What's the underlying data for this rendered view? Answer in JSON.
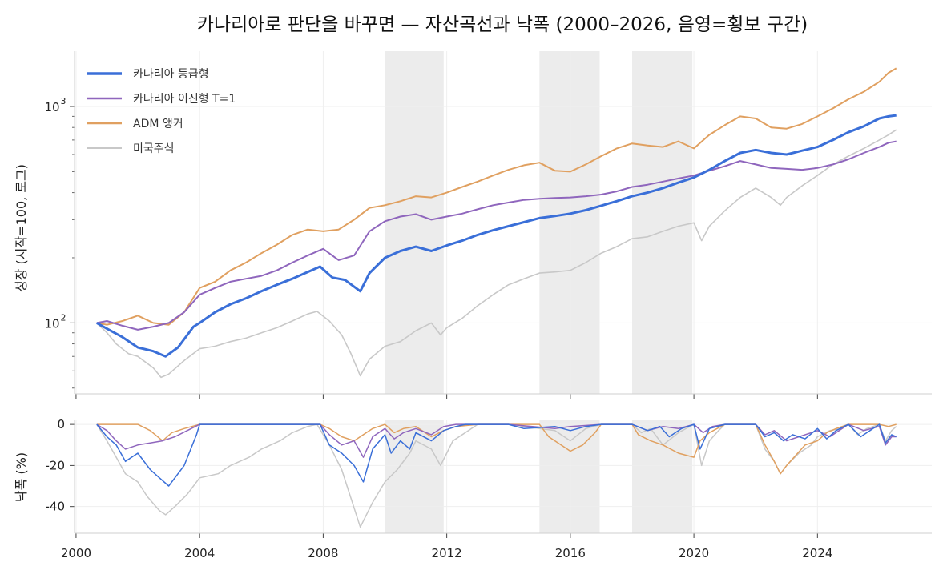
{
  "chart_data": [
    {
      "type": "line",
      "panel": "growth",
      "title": "카나리아로 판단을 바꾸면 — 자산곡선과 낙폭 (2000–2026, 음영=횡보 구간)",
      "ylabel": "성장 (시작=100, 로그)",
      "yscale": "log",
      "ylim": [
        47,
        1800
      ],
      "xlim": [
        1999.95,
        2027.7
      ],
      "grid": true,
      "legend_position": "top-left",
      "y_ticks": [
        {
          "value": 100,
          "base": "10",
          "exp": "2"
        },
        {
          "value": 1000,
          "base": "10",
          "exp": "3"
        }
      ],
      "shaded_periods": [
        [
          2010.0,
          2011.9
        ],
        [
          2015.0,
          2016.95
        ],
        [
          2018.0,
          2019.95
        ]
      ],
      "series": [
        {
          "name": "카나리아 등급형",
          "color": "#3a6fd8",
          "x": [
            2000.67,
            2001.0,
            2001.5,
            2002.0,
            2002.5,
            2002.9,
            2003.3,
            2003.8,
            2004.0,
            2004.5,
            2005.0,
            2005.5,
            2006.0,
            2006.5,
            2007.0,
            2007.5,
            2007.9,
            2008.3,
            2008.7,
            2009.2,
            2009.5,
            2010.0,
            2010.5,
            2011.0,
            2011.5,
            2012.0,
            2012.5,
            2013.0,
            2013.5,
            2014.0,
            2014.5,
            2015.0,
            2015.5,
            2016.0,
            2016.5,
            2017.0,
            2017.5,
            2018.0,
            2018.5,
            2019.0,
            2019.5,
            2020.0,
            2020.5,
            2021.0,
            2021.5,
            2022.0,
            2022.5,
            2023.0,
            2023.5,
            2024.0,
            2024.5,
            2025.0,
            2025.5,
            2026.0,
            2026.3,
            2026.55
          ],
          "values": [
            100,
            94,
            86,
            77,
            74,
            70,
            77,
            96,
            100,
            112,
            122,
            130,
            140,
            150,
            160,
            172,
            182,
            162,
            158,
            140,
            170,
            200,
            215,
            225,
            215,
            228,
            240,
            255,
            268,
            280,
            292,
            305,
            312,
            320,
            332,
            348,
            365,
            385,
            400,
            420,
            445,
            470,
            510,
            560,
            610,
            630,
            610,
            600,
            625,
            650,
            700,
            760,
            810,
            880,
            900,
            910
          ]
        },
        {
          "name": "카나리아 이진형 T=1",
          "color": "#8f66bd",
          "x": [
            2000.67,
            2001.0,
            2001.5,
            2002.0,
            2002.5,
            2003.0,
            2003.5,
            2004.0,
            2004.5,
            2005.0,
            2005.5,
            2006.0,
            2006.5,
            2007.0,
            2007.5,
            2008.0,
            2008.5,
            2009.0,
            2009.5,
            2010.0,
            2010.5,
            2011.0,
            2011.5,
            2012.0,
            2012.5,
            2013.0,
            2013.5,
            2014.0,
            2014.5,
            2015.0,
            2015.5,
            2016.0,
            2016.5,
            2017.0,
            2017.5,
            2018.0,
            2018.5,
            2019.0,
            2019.5,
            2020.0,
            2020.5,
            2021.0,
            2021.5,
            2022.0,
            2022.5,
            2023.0,
            2023.5,
            2024.0,
            2024.5,
            2025.0,
            2025.5,
            2026.0,
            2026.3,
            2026.55
          ],
          "values": [
            100,
            102,
            97,
            93,
            96,
            100,
            112,
            135,
            145,
            155,
            160,
            165,
            175,
            190,
            205,
            220,
            195,
            205,
            265,
            295,
            310,
            318,
            300,
            310,
            320,
            335,
            350,
            360,
            370,
            375,
            378,
            380,
            385,
            392,
            405,
            425,
            435,
            450,
            465,
            480,
            505,
            530,
            560,
            540,
            520,
            515,
            510,
            520,
            540,
            570,
            610,
            650,
            680,
            690
          ]
        },
        {
          "name": "ADM 앵커",
          "color": "#e0a060",
          "x": [
            2000.67,
            2001.0,
            2001.5,
            2002.0,
            2002.5,
            2003.0,
            2003.5,
            2004.0,
            2004.5,
            2005.0,
            2005.5,
            2006.0,
            2006.5,
            2007.0,
            2007.5,
            2008.0,
            2008.5,
            2009.0,
            2009.5,
            2010.0,
            2010.5,
            2011.0,
            2011.5,
            2012.0,
            2012.5,
            2013.0,
            2013.5,
            2014.0,
            2014.5,
            2015.0,
            2015.5,
            2016.0,
            2016.5,
            2017.0,
            2017.5,
            2018.0,
            2018.5,
            2019.0,
            2019.5,
            2020.0,
            2020.5,
            2021.0,
            2021.5,
            2022.0,
            2022.5,
            2023.0,
            2023.5,
            2024.0,
            2024.5,
            2025.0,
            2025.5,
            2026.0,
            2026.3,
            2026.55
          ],
          "values": [
            100,
            98,
            102,
            108,
            100,
            98,
            112,
            145,
            155,
            175,
            190,
            210,
            230,
            255,
            270,
            265,
            270,
            300,
            340,
            350,
            365,
            385,
            380,
            400,
            425,
            450,
            480,
            510,
            535,
            550,
            505,
            500,
            540,
            590,
            640,
            675,
            660,
            650,
            690,
            640,
            740,
            820,
            900,
            880,
            800,
            790,
            830,
            900,
            980,
            1080,
            1170,
            1300,
            1430,
            1500
          ]
        },
        {
          "name": "미국주식",
          "color": "#c8c8c8",
          "x": [
            2000.67,
            2001.0,
            2001.3,
            2001.7,
            2002.0,
            2002.5,
            2002.75,
            2003.0,
            2003.5,
            2004.0,
            2004.5,
            2005.0,
            2005.5,
            2006.0,
            2006.5,
            2007.0,
            2007.5,
            2007.8,
            2008.2,
            2008.6,
            2008.9,
            2009.2,
            2009.5,
            2010.0,
            2010.5,
            2011.0,
            2011.5,
            2011.8,
            2012.0,
            2012.5,
            2013.0,
            2013.5,
            2014.0,
            2014.5,
            2015.0,
            2015.5,
            2016.0,
            2016.5,
            2017.0,
            2017.5,
            2018.0,
            2018.5,
            2019.0,
            2019.5,
            2020.0,
            2020.25,
            2020.5,
            2021.0,
            2021.5,
            2022.0,
            2022.5,
            2022.8,
            2023.0,
            2023.5,
            2024.0,
            2024.5,
            2025.0,
            2025.5,
            2026.0,
            2026.3,
            2026.55
          ],
          "values": [
            100,
            90,
            80,
            72,
            70,
            62,
            56,
            58,
            67,
            76,
            78,
            82,
            85,
            90,
            95,
            102,
            110,
            113,
            102,
            88,
            72,
            57,
            68,
            78,
            82,
            92,
            100,
            88,
            95,
            105,
            120,
            135,
            150,
            160,
            170,
            172,
            175,
            190,
            210,
            225,
            245,
            250,
            265,
            280,
            290,
            240,
            280,
            330,
            380,
            420,
            380,
            350,
            380,
            430,
            480,
            540,
            590,
            640,
            700,
            740,
            780
          ]
        }
      ]
    },
    {
      "type": "line",
      "panel": "drawdown",
      "ylabel": "낙폭 (%)",
      "ylim": [
        -53,
        2
      ],
      "y_ticks": [
        0,
        -20,
        -40
      ],
      "grid": true,
      "x_ticks": [
        2000,
        2004,
        2008,
        2012,
        2016,
        2020,
        2024
      ],
      "shaded_periods": [
        [
          2010.0,
          2011.9
        ],
        [
          2015.0,
          2016.95
        ],
        [
          2018.0,
          2019.95
        ]
      ],
      "series": [
        {
          "name": "카나리아 등급형",
          "color": "#3a6fd8",
          "x": [
            2000.67,
            2001.0,
            2001.3,
            2001.6,
            2002.0,
            2002.4,
            2002.7,
            2003.0,
            2003.5,
            2003.9,
            2004.0,
            2007.9,
            2008.2,
            2008.6,
            2009.0,
            2009.3,
            2009.6,
            2010.0,
            2010.2,
            2010.5,
            2010.8,
            2011.0,
            2011.5,
            2011.9,
            2012.3,
            2012.6,
            2013.0,
            2014.0,
            2014.5,
            2015.5,
            2016.0,
            2016.5,
            2017.0,
            2018.0,
            2018.5,
            2018.9,
            2019.2,
            2019.6,
            2020.0,
            2020.2,
            2020.5,
            2021.0,
            2021.5,
            2022.0,
            2022.3,
            2022.6,
            2022.9,
            2023.2,
            2023.6,
            2024.0,
            2024.3,
            2024.6,
            2025.0,
            2025.4,
            2025.8,
            2026.0,
            2026.2,
            2026.4,
            2026.55
          ],
          "values": [
            0,
            -6,
            -10,
            -18,
            -14,
            -22,
            -26,
            -30,
            -20,
            -5,
            0,
            0,
            -10,
            -14,
            -20,
            -28,
            -12,
            -5,
            -14,
            -8,
            -12,
            -4,
            -8,
            -3,
            -1,
            0,
            0,
            0,
            -2,
            -1,
            -3,
            -1,
            0,
            0,
            -3,
            -1,
            -6,
            -2,
            0,
            -12,
            -2,
            0,
            0,
            0,
            -6,
            -4,
            -8,
            -5,
            -7,
            -2,
            -7,
            -3,
            0,
            -6,
            -2,
            0,
            -9,
            -5,
            -6
          ]
        },
        {
          "name": "카나리아 이진형 T=1",
          "color": "#8f66bd",
          "x": [
            2000.67,
            2001.0,
            2001.3,
            2001.6,
            2002.0,
            2002.4,
            2002.8,
            2003.2,
            2003.6,
            2004.0,
            2007.9,
            2008.2,
            2008.6,
            2009.0,
            2009.3,
            2009.6,
            2010.0,
            2010.3,
            2010.6,
            2011.0,
            2011.5,
            2011.9,
            2012.3,
            2013.0,
            2014.0,
            2015.5,
            2016.0,
            2017.0,
            2018.0,
            2018.5,
            2019.0,
            2019.5,
            2020.0,
            2020.3,
            2020.6,
            2021.0,
            2021.5,
            2022.0,
            2022.3,
            2022.6,
            2023.0,
            2023.4,
            2023.8,
            2024.0,
            2024.4,
            2024.8,
            2025.0,
            2025.5,
            2026.0,
            2026.2,
            2026.4,
            2026.55
          ],
          "values": [
            0,
            -3,
            -8,
            -12,
            -10,
            -9,
            -8,
            -6,
            -3,
            0,
            0,
            -5,
            -10,
            -8,
            -16,
            -6,
            -2,
            -7,
            -4,
            -2,
            -5,
            -1,
            0,
            0,
            0,
            -2,
            -1,
            0,
            0,
            -3,
            -1,
            -2,
            0,
            -4,
            -1,
            0,
            0,
            0,
            -5,
            -3,
            -8,
            -6,
            -4,
            -3,
            -6,
            -2,
            0,
            -3,
            -1,
            -10,
            -6,
            -6
          ]
        },
        {
          "name": "ADM 앵커",
          "color": "#e0a060",
          "x": [
            2000.67,
            2001.0,
            2001.5,
            2002.0,
            2002.4,
            2002.8,
            2003.1,
            2003.5,
            2004.0,
            2007.9,
            2008.2,
            2008.6,
            2009.0,
            2009.3,
            2009.6,
            2010.0,
            2010.3,
            2010.6,
            2011.0,
            2011.5,
            2011.9,
            2012.3,
            2013.0,
            2014.0,
            2015.0,
            2015.3,
            2015.7,
            2016.0,
            2016.4,
            2016.8,
            2017.0,
            2018.0,
            2018.2,
            2018.6,
            2019.0,
            2019.5,
            2020.0,
            2020.2,
            2020.5,
            2021.0,
            2021.5,
            2022.0,
            2022.3,
            2022.6,
            2022.8,
            2023.0,
            2023.3,
            2023.6,
            2024.0,
            2024.3,
            2024.6,
            2025.0,
            2025.5,
            2026.0,
            2026.3,
            2026.55
          ],
          "values": [
            0,
            0,
            0,
            0,
            -3,
            -8,
            -4,
            -2,
            0,
            0,
            -2,
            -6,
            -8,
            -5,
            -2,
            0,
            -4,
            -2,
            -1,
            -6,
            -3,
            -1,
            0,
            0,
            0,
            -6,
            -10,
            -13,
            -10,
            -4,
            0,
            0,
            -5,
            -8,
            -10,
            -14,
            -16,
            -8,
            -4,
            0,
            0,
            0,
            -10,
            -18,
            -24,
            -20,
            -15,
            -10,
            -8,
            -4,
            -2,
            0,
            0,
            0,
            -1,
            0
          ]
        },
        {
          "name": "미국주식",
          "color": "#c8c8c8",
          "x": [
            2000.67,
            2001.0,
            2001.3,
            2001.6,
            2002.0,
            2002.3,
            2002.7,
            2002.9,
            2003.2,
            2003.6,
            2004.0,
            2004.6,
            2005.0,
            2005.6,
            2006.0,
            2006.6,
            2007.0,
            2007.5,
            2007.8,
            2008.2,
            2008.6,
            2008.9,
            2009.2,
            2009.6,
            2010.0,
            2010.4,
            2010.8,
            2011.0,
            2011.5,
            2011.8,
            2012.2,
            2012.6,
            2013.0,
            2014.0,
            2015.5,
            2016.0,
            2016.5,
            2017.0,
            2018.0,
            2018.3,
            2018.6,
            2019.0,
            2019.5,
            2020.0,
            2020.25,
            2020.5,
            2020.8,
            2021.0,
            2021.5,
            2022.0,
            2022.3,
            2022.6,
            2022.8,
            2023.0,
            2023.4,
            2023.8,
            2024.0,
            2024.4,
            2024.8,
            2025.0,
            2025.3,
            2025.6,
            2026.0,
            2026.2,
            2026.4,
            2026.55
          ],
          "values": [
            0,
            -8,
            -16,
            -24,
            -28,
            -35,
            -42,
            -44,
            -40,
            -34,
            -26,
            -24,
            -20,
            -16,
            -12,
            -8,
            -4,
            -1,
            0,
            -10,
            -22,
            -36,
            -50,
            -38,
            -28,
            -22,
            -14,
            -8,
            -12,
            -20,
            -8,
            -4,
            0,
            0,
            -3,
            -8,
            -2,
            0,
            0,
            -4,
            -2,
            -10,
            -4,
            0,
            -20,
            -8,
            -3,
            0,
            0,
            0,
            -12,
            -18,
            -24,
            -20,
            -14,
            -10,
            -6,
            -3,
            -2,
            0,
            -5,
            -2,
            0,
            -8,
            -3,
            -1
          ]
        }
      ]
    }
  ]
}
